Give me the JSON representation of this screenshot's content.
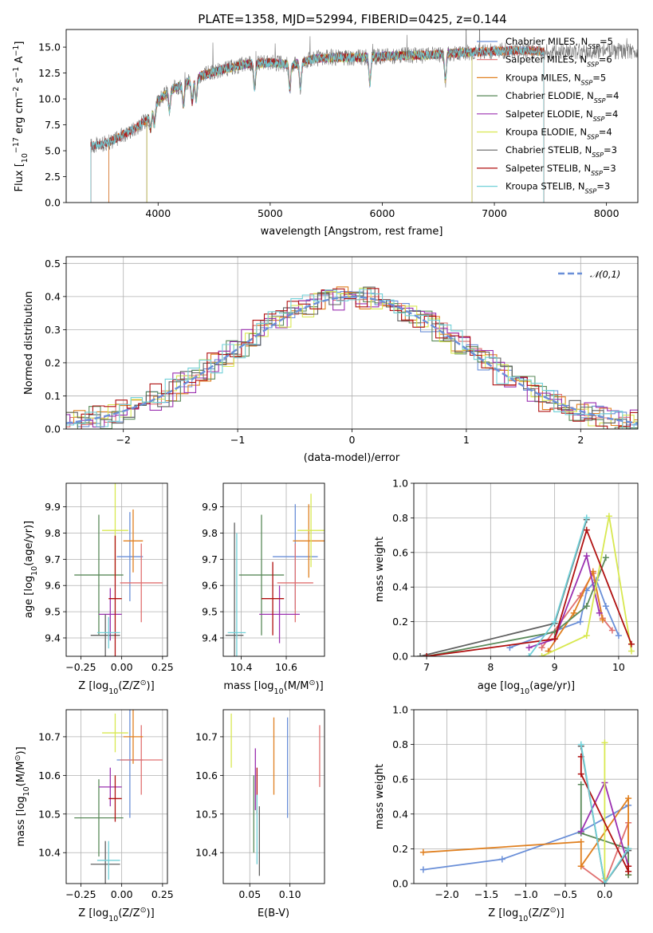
{
  "figure": {
    "title": "PLATE=1358, MJD=52994, FIBERID=0425, z=0.144"
  },
  "models": [
    {
      "name": "Chabrier MILES",
      "nssp": "5",
      "color": "#6a8fd8"
    },
    {
      "name": "Salpeter MILES",
      "nssp": "6",
      "color": "#e07070"
    },
    {
      "name": "Kroupa MILES",
      "nssp": "5",
      "color": "#e08020"
    },
    {
      "name": "Chabrier ELODIE",
      "nssp": "4",
      "color": "#5a8a5a"
    },
    {
      "name": "Salpeter ELODIE",
      "nssp": "4",
      "color": "#9b30b0"
    },
    {
      "name": "Kroupa ELODIE",
      "nssp": "4",
      "color": "#d8e850"
    },
    {
      "name": "Chabrier STELIB",
      "nssp": "3",
      "color": "#606060"
    },
    {
      "name": "Salpeter STELIB",
      "nssp": "3",
      "color": "#b01010"
    },
    {
      "name": "Kroupa STELIB",
      "nssp": "3",
      "color": "#70d0d8"
    }
  ],
  "chart_data": [
    {
      "id": "spectrum",
      "type": "line",
      "title": "PLATE=1358, MJD=52994, FIBERID=0425, z=0.144",
      "xlabel": "wavelength [Angstrom, rest frame]",
      "ylabel_parts": [
        "Flux [",
        "10",
        "−17",
        " erg cm",
        "−2",
        " s",
        "−1",
        " A",
        "−1",
        "]"
      ],
      "xlim": [
        3180,
        8280
      ],
      "ylim": [
        0,
        16.7
      ],
      "xticks": [
        4000,
        5000,
        6000,
        7000,
        8000
      ],
      "yticks": [
        0.0,
        2.5,
        5.0,
        7.5,
        10.0,
        12.5,
        15.0
      ],
      "grid": false,
      "legend": "top-right",
      "continuum": {
        "x": [
          3400,
          3500,
          3600,
          3700,
          3800,
          3900,
          4000,
          4100,
          4200,
          4400,
          4600,
          4800,
          5000,
          5200,
          5400,
          5600,
          5800,
          6000,
          6200,
          6400,
          6600,
          6800,
          7000,
          7200,
          7400
        ],
        "y": [
          5.5,
          5.6,
          6.0,
          6.6,
          7.2,
          8.0,
          9.8,
          10.8,
          11.3,
          12.3,
          12.9,
          13.4,
          13.5,
          13.3,
          13.9,
          14.0,
          14.0,
          14.1,
          14.2,
          14.2,
          14.4,
          14.5,
          14.6,
          14.7,
          14.6
        ]
      },
      "absorption_lines": [
        3933,
        3968,
        4102,
        4227,
        4304,
        4340,
        4861,
        5175,
        5270,
        5890,
        6563
      ],
      "model_ranges": [
        {
          "x": [
            3560,
            7440
          ]
        },
        {
          "x": [
            3560,
            7440
          ]
        },
        {
          "x": [
            3560,
            7440
          ]
        },
        {
          "x": [
            3900,
            6800
          ]
        },
        {
          "x": [
            3900,
            6800
          ]
        },
        {
          "x": [
            3900,
            6800
          ]
        },
        {
          "x": [
            3400,
            7440
          ]
        },
        {
          "x": [
            3400,
            7440
          ]
        },
        {
          "x": [
            3400,
            7440
          ]
        }
      ]
    },
    {
      "id": "residuals",
      "type": "step",
      "xlabel": "(data-model)/error",
      "ylabel": "Normed distribution",
      "xlim": [
        -2.5,
        2.5
      ],
      "ylim": [
        0,
        0.52
      ],
      "xticks": [
        -2,
        -1,
        0,
        1,
        2
      ],
      "yticks": [
        0.0,
        0.1,
        0.2,
        0.3,
        0.4,
        0.5
      ],
      "grid": true,
      "legend": "top-right",
      "reference_curve": {
        "label": "𝒩(0,1)",
        "mu": 0,
        "sigma": 1,
        "color": "#6a8fd8"
      },
      "bin_width": 0.1,
      "noise_amplitude": [
        0.03,
        0.03,
        0.035,
        0.04,
        0.045,
        0.035,
        0.035,
        0.045,
        0.04
      ]
    },
    {
      "id": "age-vs-z",
      "type": "errorbar",
      "xlabel_parts": [
        "Z [log",
        "10",
        "(Z/Z",
        "⊙",
        ")]"
      ],
      "ylabel_parts": [
        "age  [log",
        "10",
        "(age/yr)]"
      ],
      "xlim": [
        -0.34,
        0.28
      ],
      "ylim": [
        9.33,
        9.99
      ],
      "xticks": [
        -0.25,
        0.0,
        0.25
      ],
      "xtick_labels": [
        "−0.25",
        "0.00",
        "0.25"
      ],
      "yticks": [
        9.4,
        9.5,
        9.6,
        9.7,
        9.8,
        9.9
      ],
      "grid": true,
      "points": [
        {
          "model": 0,
          "x": 0.05,
          "xerr": 0.08,
          "y": 9.71,
          "yerr": 0.17
        },
        {
          "model": 1,
          "x": 0.12,
          "xerr": 0.13,
          "y": 9.61,
          "yerr": 0.15
        },
        {
          "model": 2,
          "x": 0.07,
          "xerr": 0.06,
          "y": 9.77,
          "yerr": 0.12
        },
        {
          "model": 3,
          "x": -0.14,
          "xerr": 0.15,
          "y": 9.64,
          "yerr": 0.23
        },
        {
          "model": 4,
          "x": -0.07,
          "xerr": 0.07,
          "y": 9.49,
          "yerr": 0.1
        },
        {
          "model": 5,
          "x": -0.04,
          "xerr": 0.08,
          "y": 9.81,
          "yerr": 0.18
        },
        {
          "model": 6,
          "x": -0.1,
          "xerr": 0.09,
          "y": 9.41,
          "yerr": 0.08
        },
        {
          "model": 7,
          "x": -0.04,
          "xerr": 0.04,
          "y": 9.55,
          "yerr": 0.24
        },
        {
          "model": 8,
          "x": -0.08,
          "xerr": 0.07,
          "y": 9.42,
          "yerr": 0.06
        }
      ]
    },
    {
      "id": "age-vs-mass",
      "type": "errorbar",
      "xlabel_parts": [
        "mass [log",
        "10",
        "(M/M",
        "⊙",
        ")]"
      ],
      "ylabel_parts": [],
      "xlim": [
        10.32,
        10.77
      ],
      "ylim": [
        9.33,
        9.99
      ],
      "xticks": [
        10.4,
        10.6
      ],
      "xtick_labels": [
        "10.4",
        "10.6"
      ],
      "yticks": [
        9.4,
        9.5,
        9.6,
        9.7,
        9.8,
        9.9
      ],
      "grid": true,
      "points": [
        {
          "model": 0,
          "x": 10.64,
          "xerr": 0.1,
          "y": 9.71,
          "yerr": 0.2
        },
        {
          "model": 1,
          "x": 10.64,
          "xerr": 0.08,
          "y": 9.61,
          "yerr": 0.15
        },
        {
          "model": 2,
          "x": 10.7,
          "xerr": 0.07,
          "y": 9.77,
          "yerr": 0.14
        },
        {
          "model": 3,
          "x": 10.49,
          "xerr": 0.1,
          "y": 9.64,
          "yerr": 0.23
        },
        {
          "model": 4,
          "x": 10.57,
          "xerr": 0.09,
          "y": 9.49,
          "yerr": 0.11
        },
        {
          "model": 5,
          "x": 10.71,
          "xerr": 0.06,
          "y": 9.81,
          "yerr": 0.14
        },
        {
          "model": 6,
          "x": 10.37,
          "xerr": 0.04,
          "y": 9.41,
          "yerr": 0.43
        },
        {
          "model": 7,
          "x": 10.54,
          "xerr": 0.05,
          "y": 9.55,
          "yerr": 0.14
        },
        {
          "model": 8,
          "x": 10.38,
          "xerr": 0.04,
          "y": 9.42,
          "yerr": 0.38
        }
      ]
    },
    {
      "id": "mass-weight-vs-age",
      "type": "line",
      "xlabel_parts": [
        "age  [log",
        "10",
        "(age/yr)]"
      ],
      "ylabel": "mass weight",
      "xlim": [
        6.8,
        10.3
      ],
      "ylim": [
        0,
        1
      ],
      "xticks": [
        7,
        8,
        9,
        10
      ],
      "yticks": [
        0.0,
        0.2,
        0.4,
        0.6,
        0.8,
        1.0
      ],
      "grid": true,
      "series": [
        {
          "model": 0,
          "x": [
            8.3,
            9.4,
            9.5,
            9.65,
            9.8,
            10.0
          ],
          "y": [
            0.05,
            0.2,
            0.38,
            0.44,
            0.29,
            0.12
          ]
        },
        {
          "model": 1,
          "x": [
            8.8,
            9.4,
            9.6,
            9.75,
            9.9
          ],
          "y": [
            0.05,
            0.35,
            0.48,
            0.22,
            0.15
          ]
        },
        {
          "model": 2,
          "x": [
            8.9,
            9.3,
            9.6,
            9.75
          ],
          "y": [
            0.03,
            0.25,
            0.49,
            0.21
          ]
        },
        {
          "model": 3,
          "x": [
            7.0,
            9.0,
            9.5,
            9.8
          ],
          "y": [
            0.0,
            0.14,
            0.29,
            0.57
          ]
        },
        {
          "model": 4,
          "x": [
            8.6,
            9.0,
            9.5,
            9.7
          ],
          "y": [
            0.05,
            0.1,
            0.58,
            0.25
          ]
        },
        {
          "model": 5,
          "x": [
            8.8,
            9.5,
            9.85,
            10.2
          ],
          "y": [
            0.0,
            0.12,
            0.81,
            0.03
          ]
        },
        {
          "model": 6,
          "x": [
            6.9,
            9.0,
            9.5
          ],
          "y": [
            0.0,
            0.19,
            0.79
          ]
        },
        {
          "model": 7,
          "x": [
            7.0,
            9.0,
            9.5,
            10.2
          ],
          "y": [
            0.0,
            0.1,
            0.73,
            0.07
          ]
        },
        {
          "model": 8,
          "x": [
            8.6,
            9.0,
            9.5
          ],
          "y": [
            0.0,
            0.2,
            0.8
          ]
        }
      ]
    },
    {
      "id": "mass-vs-z",
      "type": "errorbar",
      "xlabel_parts": [
        "Z [log",
        "10",
        "(Z/Z",
        "⊙",
        ")]"
      ],
      "ylabel_parts": [
        "mass [log",
        "10",
        "(M/M",
        "⊙",
        ")]"
      ],
      "xlim": [
        -0.34,
        0.28
      ],
      "ylim": [
        10.32,
        10.77
      ],
      "xticks": [
        -0.25,
        0.0,
        0.25
      ],
      "xtick_labels": [
        "−0.25",
        "0.00",
        "0.25"
      ],
      "yticks": [
        10.4,
        10.5,
        10.6,
        10.7
      ],
      "grid": true,
      "points": [
        {
          "model": 0,
          "x": 0.05,
          "xerr": 0.08,
          "y": 10.64,
          "yerr": 0.15
        },
        {
          "model": 1,
          "x": 0.12,
          "xerr": 0.13,
          "y": 10.64,
          "yerr": 0.09
        },
        {
          "model": 2,
          "x": 0.07,
          "xerr": 0.06,
          "y": 10.7,
          "yerr": 0.07
        },
        {
          "model": 3,
          "x": -0.14,
          "xerr": 0.15,
          "y": 10.49,
          "yerr": 0.1
        },
        {
          "model": 4,
          "x": -0.07,
          "xerr": 0.07,
          "y": 10.57,
          "yerr": 0.05
        },
        {
          "model": 5,
          "x": -0.04,
          "xerr": 0.08,
          "y": 10.71,
          "yerr": 0.05
        },
        {
          "model": 6,
          "x": -0.1,
          "xerr": 0.09,
          "y": 10.37,
          "yerr": 0.06
        },
        {
          "model": 7,
          "x": -0.04,
          "xerr": 0.04,
          "y": 10.54,
          "yerr": 0.06
        },
        {
          "model": 8,
          "x": -0.08,
          "xerr": 0.07,
          "y": 10.38,
          "yerr": 0.05
        }
      ]
    },
    {
      "id": "mass-vs-ebv",
      "type": "errorbar",
      "xlabel": "E(B-V)",
      "ylabel_parts": [],
      "xlim": [
        0.017,
        0.143
      ],
      "ylim": [
        10.32,
        10.77
      ],
      "xticks": [
        0.05,
        0.1
      ],
      "xtick_labels": [
        "0.05",
        "0.10"
      ],
      "yticks": [
        10.4,
        10.5,
        10.6,
        10.7
      ],
      "grid": true,
      "points": [
        {
          "model": 0,
          "x": 0.097,
          "xerr": 0,
          "y": 10.62,
          "yerr": 0.13
        },
        {
          "model": 1,
          "x": 0.137,
          "xerr": 0,
          "y": 10.65,
          "yerr": 0.08
        },
        {
          "model": 2,
          "x": 0.08,
          "xerr": 0,
          "y": 10.65,
          "yerr": 0.1
        },
        {
          "model": 3,
          "x": 0.055,
          "xerr": 0,
          "y": 10.5,
          "yerr": 0.1
        },
        {
          "model": 4,
          "x": 0.057,
          "xerr": 0,
          "y": 10.59,
          "yerr": 0.08
        },
        {
          "model": 5,
          "x": 0.027,
          "xerr": 0,
          "y": 10.69,
          "yerr": 0.07
        },
        {
          "model": 6,
          "x": 0.062,
          "xerr": 0,
          "y": 10.43,
          "yerr": 0.09
        },
        {
          "model": 7,
          "x": 0.059,
          "xerr": 0,
          "y": 10.56,
          "yerr": 0.06
        },
        {
          "model": 8,
          "x": 0.059,
          "xerr": 0,
          "y": 10.46,
          "yerr": 0.09
        }
      ]
    },
    {
      "id": "mass-weight-vs-z",
      "type": "line",
      "xlabel_parts": [
        "Z [log",
        "10",
        "(Z/Z",
        "⊙",
        ")]"
      ],
      "ylabel": "mass weight",
      "xlim": [
        -2.42,
        0.42
      ],
      "ylim": [
        0,
        1
      ],
      "xticks": [
        -2.0,
        -1.5,
        -1.0,
        -0.5,
        0.0
      ],
      "xtick_labels": [
        "−2.0",
        "−1.5",
        "−1.0",
        "−0.5",
        "0.0"
      ],
      "yticks": [
        0.0,
        0.2,
        0.4,
        0.6,
        0.8,
        1.0
      ],
      "grid": true,
      "series": [
        {
          "model": 0,
          "x": [
            -2.3,
            -1.3,
            -0.3,
            0.3
          ],
          "y": [
            0.08,
            0.14,
            0.3,
            0.45
          ]
        },
        {
          "model": 1,
          "x": [
            -0.3,
            0.0,
            0.3,
            0.3
          ],
          "y": [
            0.1,
            0.0,
            0.35,
            0.2
          ]
        },
        {
          "model": 2,
          "x": [
            -2.3,
            -0.3,
            -0.3,
            0.3,
            0.3
          ],
          "y": [
            0.18,
            0.24,
            0.1,
            0.49,
            0.05
          ]
        },
        {
          "model": 3,
          "x": [
            -0.3,
            -0.3,
            0.3,
            0.3
          ],
          "y": [
            0.57,
            0.29,
            0.2,
            0.05
          ]
        },
        {
          "model": 4,
          "x": [
            -0.3,
            0.0,
            0.3
          ],
          "y": [
            0.3,
            0.58,
            0.1
          ]
        },
        {
          "model": 5,
          "x": [
            0.0,
            0.0
          ],
          "y": [
            0.81,
            0.03
          ]
        },
        {
          "model": 6,
          "x": [
            -0.3,
            0.0,
            0.3
          ],
          "y": [
            0.79,
            0.0,
            0.19
          ]
        },
        {
          "model": 7,
          "x": [
            -0.3,
            -0.3,
            0.3,
            0.3
          ],
          "y": [
            0.73,
            0.63,
            0.07,
            0.1
          ]
        },
        {
          "model": 8,
          "x": [
            -0.3,
            0.0,
            0.3
          ],
          "y": [
            0.8,
            0.0,
            0.2
          ]
        }
      ]
    }
  ]
}
